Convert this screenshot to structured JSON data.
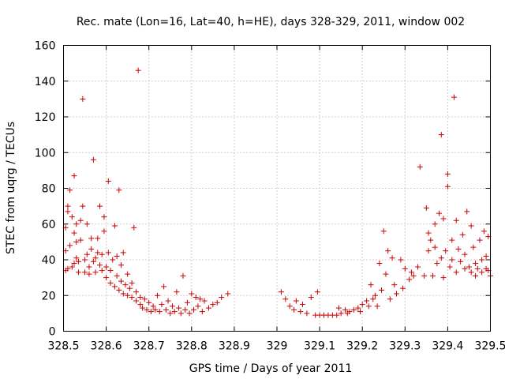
{
  "chart_data": {
    "type": "scatter",
    "title": "Rec. mate (Lon=16, Lat=40, h=HE), days 328-329, 2011, window 002",
    "xlabel": "GPS time / Days of year 2011",
    "ylabel": "STEC from uqrg / TECUs",
    "xlim": [
      328.5,
      329.5
    ],
    "ylim": [
      0,
      160
    ],
    "xticks": [
      "328.5",
      "328.6",
      "328.7",
      "328.8",
      "328.9",
      "329",
      "329.1",
      "329.2",
      "329.3",
      "329.4",
      "329.5"
    ],
    "yticks": [
      "0",
      "20",
      "40",
      "60",
      "80",
      "100",
      "120",
      "140",
      "160"
    ],
    "grid": true,
    "marker": "plus",
    "color": "#cc0000",
    "points": [
      [
        328.505,
        34
      ],
      [
        328.505,
        45
      ],
      [
        328.505,
        58
      ],
      [
        328.51,
        35
      ],
      [
        328.51,
        67
      ],
      [
        328.51,
        70
      ],
      [
        328.515,
        48
      ],
      [
        328.515,
        79
      ],
      [
        328.52,
        36
      ],
      [
        328.52,
        64
      ],
      [
        328.525,
        38
      ],
      [
        328.525,
        55
      ],
      [
        328.525,
        87
      ],
      [
        328.53,
        41
      ],
      [
        328.53,
        50
      ],
      [
        328.53,
        60
      ],
      [
        328.535,
        33
      ],
      [
        328.535,
        39
      ],
      [
        328.54,
        51
      ],
      [
        328.54,
        62
      ],
      [
        328.545,
        70
      ],
      [
        328.545,
        130
      ],
      [
        328.55,
        33
      ],
      [
        328.55,
        40
      ],
      [
        328.555,
        43
      ],
      [
        328.555,
        60
      ],
      [
        328.56,
        32
      ],
      [
        328.56,
        36
      ],
      [
        328.565,
        46
      ],
      [
        328.565,
        52
      ],
      [
        328.57,
        39
      ],
      [
        328.57,
        96
      ],
      [
        328.575,
        33
      ],
      [
        328.575,
        41
      ],
      [
        328.58,
        44
      ],
      [
        328.58,
        52
      ],
      [
        328.585,
        70
      ],
      [
        328.585,
        37
      ],
      [
        328.59,
        34
      ],
      [
        328.59,
        43
      ],
      [
        328.595,
        56
      ],
      [
        328.595,
        64
      ],
      [
        328.6,
        30
      ],
      [
        328.6,
        36
      ],
      [
        328.605,
        44
      ],
      [
        328.605,
        84
      ],
      [
        328.61,
        27
      ],
      [
        328.61,
        34
      ],
      [
        328.615,
        40
      ],
      [
        328.62,
        25
      ],
      [
        328.62,
        59
      ],
      [
        328.625,
        31
      ],
      [
        328.625,
        42
      ],
      [
        328.63,
        23
      ],
      [
        328.63,
        79
      ],
      [
        328.635,
        28
      ],
      [
        328.635,
        37
      ],
      [
        328.64,
        21
      ],
      [
        328.64,
        44
      ],
      [
        328.645,
        26
      ],
      [
        328.65,
        20
      ],
      [
        328.65,
        32
      ],
      [
        328.655,
        24
      ],
      [
        328.66,
        19
      ],
      [
        328.66,
        27
      ],
      [
        328.665,
        58
      ],
      [
        328.67,
        17
      ],
      [
        328.67,
        22
      ],
      [
        328.675,
        146
      ],
      [
        328.68,
        15
      ],
      [
        328.68,
        19
      ],
      [
        328.685,
        13
      ],
      [
        328.69,
        18
      ],
      [
        328.695,
        12
      ],
      [
        328.7,
        16
      ],
      [
        328.705,
        11
      ],
      [
        328.71,
        14
      ],
      [
        328.715,
        12
      ],
      [
        328.72,
        20
      ],
      [
        328.725,
        11
      ],
      [
        328.73,
        15
      ],
      [
        328.735,
        25
      ],
      [
        328.74,
        12
      ],
      [
        328.745,
        17
      ],
      [
        328.75,
        10
      ],
      [
        328.755,
        14
      ],
      [
        328.76,
        11
      ],
      [
        328.765,
        22
      ],
      [
        328.77,
        13
      ],
      [
        328.775,
        10
      ],
      [
        328.78,
        31
      ],
      [
        328.785,
        12
      ],
      [
        328.79,
        16
      ],
      [
        328.795,
        10
      ],
      [
        328.8,
        21
      ],
      [
        328.805,
        12
      ],
      [
        328.81,
        19
      ],
      [
        328.815,
        14
      ],
      [
        328.82,
        18
      ],
      [
        328.825,
        11
      ],
      [
        328.83,
        17
      ],
      [
        328.84,
        13
      ],
      [
        328.85,
        15
      ],
      [
        328.86,
        16
      ],
      [
        328.87,
        19
      ],
      [
        328.885,
        21
      ],
      [
        329.01,
        22
      ],
      [
        329.02,
        18
      ],
      [
        329.03,
        14
      ],
      [
        329.04,
        12
      ],
      [
        329.045,
        17
      ],
      [
        329.055,
        11
      ],
      [
        329.06,
        15
      ],
      [
        329.07,
        10
      ],
      [
        329.08,
        19
      ],
      [
        329.09,
        9
      ],
      [
        329.095,
        22
      ],
      [
        329.1,
        9
      ],
      [
        329.11,
        9
      ],
      [
        329.12,
        9
      ],
      [
        329.13,
        9
      ],
      [
        329.14,
        9
      ],
      [
        329.145,
        13
      ],
      [
        329.15,
        10
      ],
      [
        329.16,
        12
      ],
      [
        329.165,
        10
      ],
      [
        329.17,
        11
      ],
      [
        329.18,
        12
      ],
      [
        329.19,
        13
      ],
      [
        329.195,
        11
      ],
      [
        329.2,
        15
      ],
      [
        329.21,
        17
      ],
      [
        329.215,
        14
      ],
      [
        329.22,
        26
      ],
      [
        329.225,
        18
      ],
      [
        329.23,
        20
      ],
      [
        329.235,
        14
      ],
      [
        329.24,
        38
      ],
      [
        329.245,
        23
      ],
      [
        329.25,
        56
      ],
      [
        329.255,
        32
      ],
      [
        329.26,
        45
      ],
      [
        329.265,
        18
      ],
      [
        329.27,
        41
      ],
      [
        329.275,
        26
      ],
      [
        329.28,
        21
      ],
      [
        329.29,
        40
      ],
      [
        329.295,
        24
      ],
      [
        329.3,
        35
      ],
      [
        329.31,
        29
      ],
      [
        329.315,
        33
      ],
      [
        329.32,
        31
      ],
      [
        329.33,
        36
      ],
      [
        329.335,
        92
      ],
      [
        329.345,
        31
      ],
      [
        329.35,
        69
      ],
      [
        329.355,
        45
      ],
      [
        329.355,
        55
      ],
      [
        329.36,
        51
      ],
      [
        329.365,
        31
      ],
      [
        329.37,
        60
      ],
      [
        329.37,
        47
      ],
      [
        329.375,
        38
      ],
      [
        329.38,
        66
      ],
      [
        329.385,
        41
      ],
      [
        329.385,
        110
      ],
      [
        329.39,
        63
      ],
      [
        329.39,
        30
      ],
      [
        329.395,
        45
      ],
      [
        329.4,
        88
      ],
      [
        329.4,
        81
      ],
      [
        329.405,
        36
      ],
      [
        329.41,
        51
      ],
      [
        329.41,
        40
      ],
      [
        329.415,
        131
      ],
      [
        329.42,
        62
      ],
      [
        329.42,
        33
      ],
      [
        329.425,
        46
      ],
      [
        329.43,
        39
      ],
      [
        329.435,
        54
      ],
      [
        329.44,
        35
      ],
      [
        329.44,
        43
      ],
      [
        329.445,
        67
      ],
      [
        329.45,
        36
      ],
      [
        329.455,
        33
      ],
      [
        329.455,
        59
      ],
      [
        329.46,
        47
      ],
      [
        329.465,
        31
      ],
      [
        329.465,
        38
      ],
      [
        329.47,
        35
      ],
      [
        329.475,
        51
      ],
      [
        329.48,
        33
      ],
      [
        329.48,
        40
      ],
      [
        329.485,
        56
      ],
      [
        329.49,
        42
      ],
      [
        329.49,
        35
      ],
      [
        329.495,
        53
      ],
      [
        329.495,
        34
      ],
      [
        329.5,
        31
      ]
    ]
  }
}
